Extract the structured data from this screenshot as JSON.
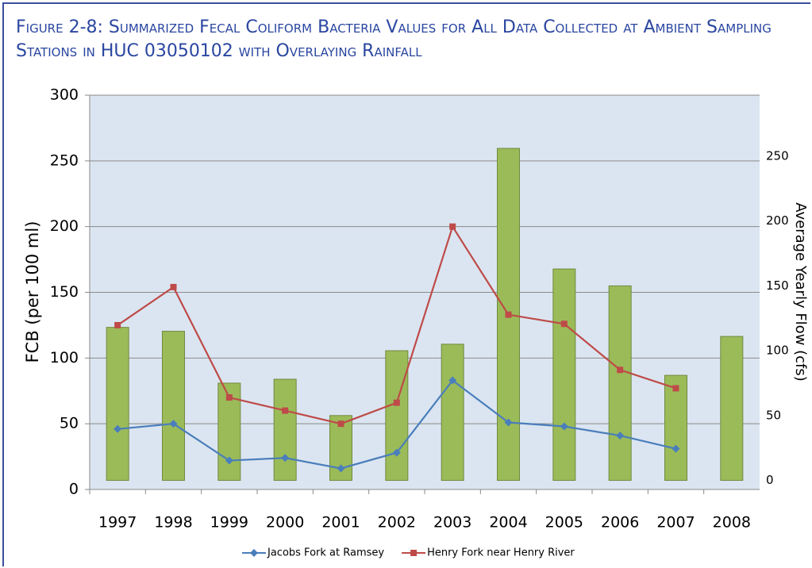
{
  "chart_data": {
    "type": "bar-line",
    "title": "Figure 2-8: Summarized Fecal Coliform Bacteria Values for All Data Collected at Ambient Sampling Stations in HUC 03050102 with Overlaying Rainfall",
    "y_label": "FCB (per 100 ml)",
    "y2_label": "Average Yearly Flow (cfs)",
    "categories": [
      "1997",
      "1998",
      "1999",
      "2000",
      "2001",
      "2002",
      "2003",
      "2004",
      "2005",
      "2006",
      "2007",
      "2008"
    ],
    "series": [
      {
        "type": "bar",
        "axis": "y2",
        "color": "#9bbb59",
        "values": [
          118,
          115,
          75,
          78,
          50,
          100,
          105,
          256,
          163,
          150,
          81,
          111
        ]
      },
      {
        "type": "line",
        "name": "Jacobs Fork at Ramsey",
        "color": "#4a7ebb",
        "marker": "diamond",
        "values": [
          46,
          50,
          22,
          24,
          16,
          28,
          83,
          51,
          48,
          41,
          31,
          null
        ]
      },
      {
        "type": "line",
        "name": "Henry Fork near Henry River",
        "color": "#be4b48",
        "marker": "square",
        "values": [
          125,
          154,
          70,
          60,
          50,
          66,
          200,
          133,
          126,
          91,
          77,
          null
        ]
      }
    ],
    "ylim": [
      0,
      300
    ],
    "yticks": [
      0,
      50,
      100,
      150,
      200,
      250,
      300
    ],
    "y2lim": [
      -7,
      297
    ],
    "y2ticks": [
      0,
      50,
      100,
      150,
      200,
      250
    ],
    "grid": true,
    "legend": "bottom"
  }
}
